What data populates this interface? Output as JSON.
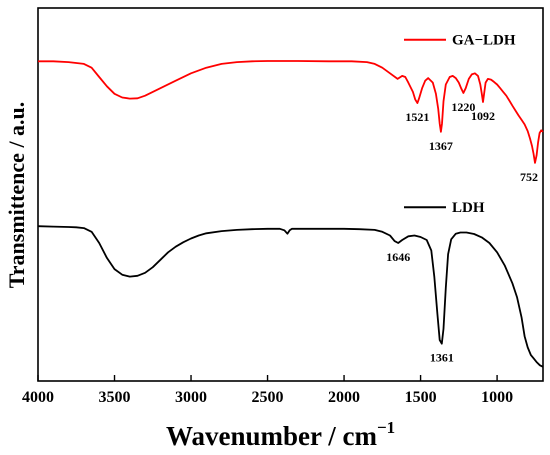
{
  "chart_data": {
    "type": "line",
    "xlabel": "Wavenumber / cm",
    "xlabel_superscript": "−1",
    "ylabel": "Transmittence / a.u.",
    "xlim": [
      4000,
      700
    ],
    "ylim": [
      0,
      1
    ],
    "x_reversed": true,
    "xticks": [
      4000,
      3500,
      3000,
      2500,
      2000,
      1500,
      1000
    ],
    "xtick_labels": [
      "4000",
      "3500",
      "3000",
      "2500",
      "2000",
      "1500",
      "1000"
    ],
    "grid": false,
    "legend_placement": "beside-each-curve",
    "series": [
      {
        "name": "GA−LDH",
        "color": "#ff0000",
        "points": [
          [
            4000,
            0.857
          ],
          [
            3900,
            0.857
          ],
          [
            3800,
            0.855
          ],
          [
            3700,
            0.85
          ],
          [
            3650,
            0.84
          ],
          [
            3600,
            0.815
          ],
          [
            3550,
            0.79
          ],
          [
            3500,
            0.77
          ],
          [
            3450,
            0.76
          ],
          [
            3400,
            0.757
          ],
          [
            3350,
            0.758
          ],
          [
            3300,
            0.765
          ],
          [
            3200,
            0.785
          ],
          [
            3100,
            0.805
          ],
          [
            3000,
            0.825
          ],
          [
            2900,
            0.84
          ],
          [
            2800,
            0.85
          ],
          [
            2700,
            0.855
          ],
          [
            2600,
            0.857
          ],
          [
            2500,
            0.858
          ],
          [
            2300,
            0.858
          ],
          [
            2100,
            0.857
          ],
          [
            1950,
            0.857
          ],
          [
            1850,
            0.855
          ],
          [
            1800,
            0.85
          ],
          [
            1750,
            0.84
          ],
          [
            1700,
            0.825
          ],
          [
            1650,
            0.81
          ],
          [
            1620,
            0.818
          ],
          [
            1600,
            0.815
          ],
          [
            1580,
            0.8
          ],
          [
            1550,
            0.775
          ],
          [
            1535,
            0.755
          ],
          [
            1521,
            0.745
          ],
          [
            1510,
            0.757
          ],
          [
            1490,
            0.785
          ],
          [
            1470,
            0.805
          ],
          [
            1450,
            0.812
          ],
          [
            1420,
            0.8
          ],
          [
            1400,
            0.77
          ],
          [
            1385,
            0.73
          ],
          [
            1375,
            0.69
          ],
          [
            1367,
            0.668
          ],
          [
            1360,
            0.69
          ],
          [
            1350,
            0.75
          ],
          [
            1335,
            0.795
          ],
          [
            1310,
            0.815
          ],
          [
            1290,
            0.818
          ],
          [
            1270,
            0.812
          ],
          [
            1250,
            0.8
          ],
          [
            1235,
            0.785
          ],
          [
            1220,
            0.772
          ],
          [
            1205,
            0.785
          ],
          [
            1185,
            0.81
          ],
          [
            1165,
            0.822
          ],
          [
            1145,
            0.825
          ],
          [
            1125,
            0.818
          ],
          [
            1110,
            0.795
          ],
          [
            1100,
            0.77
          ],
          [
            1092,
            0.748
          ],
          [
            1085,
            0.77
          ],
          [
            1075,
            0.8
          ],
          [
            1060,
            0.81
          ],
          [
            1040,
            0.808
          ],
          [
            1020,
            0.802
          ],
          [
            1000,
            0.795
          ],
          [
            980,
            0.785
          ],
          [
            960,
            0.775
          ],
          [
            940,
            0.765
          ],
          [
            920,
            0.752
          ],
          [
            900,
            0.738
          ],
          [
            880,
            0.725
          ],
          [
            860,
            0.712
          ],
          [
            840,
            0.7
          ],
          [
            820,
            0.688
          ],
          [
            800,
            0.67
          ],
          [
            785,
            0.65
          ],
          [
            772,
            0.63
          ],
          [
            762,
            0.61
          ],
          [
            752,
            0.585
          ],
          [
            742,
            0.605
          ],
          [
            732,
            0.64
          ],
          [
            722,
            0.665
          ],
          [
            712,
            0.672
          ],
          [
            700,
            0.668
          ]
        ]
      },
      {
        "name": "LDH",
        "color": "#000000",
        "points": [
          [
            4000,
            0.415
          ],
          [
            3900,
            0.414
          ],
          [
            3800,
            0.413
          ],
          [
            3750,
            0.412
          ],
          [
            3700,
            0.41
          ],
          [
            3650,
            0.4
          ],
          [
            3600,
            0.37
          ],
          [
            3550,
            0.33
          ],
          [
            3500,
            0.3
          ],
          [
            3450,
            0.285
          ],
          [
            3400,
            0.28
          ],
          [
            3350,
            0.282
          ],
          [
            3300,
            0.29
          ],
          [
            3250,
            0.305
          ],
          [
            3200,
            0.325
          ],
          [
            3150,
            0.345
          ],
          [
            3100,
            0.36
          ],
          [
            3050,
            0.372
          ],
          [
            3000,
            0.382
          ],
          [
            2950,
            0.39
          ],
          [
            2900,
            0.396
          ],
          [
            2800,
            0.402
          ],
          [
            2700,
            0.405
          ],
          [
            2600,
            0.407
          ],
          [
            2500,
            0.408
          ],
          [
            2420,
            0.408
          ],
          [
            2390,
            0.404
          ],
          [
            2370,
            0.395
          ],
          [
            2355,
            0.404
          ],
          [
            2340,
            0.408
          ],
          [
            2200,
            0.408
          ],
          [
            2000,
            0.408
          ],
          [
            1900,
            0.407
          ],
          [
            1800,
            0.405
          ],
          [
            1750,
            0.4
          ],
          [
            1700,
            0.39
          ],
          [
            1670,
            0.375
          ],
          [
            1646,
            0.37
          ],
          [
            1620,
            0.378
          ],
          [
            1580,
            0.388
          ],
          [
            1540,
            0.39
          ],
          [
            1500,
            0.386
          ],
          [
            1460,
            0.378
          ],
          [
            1430,
            0.35
          ],
          [
            1410,
            0.28
          ],
          [
            1390,
            0.18
          ],
          [
            1375,
            0.11
          ],
          [
            1361,
            0.1
          ],
          [
            1350,
            0.14
          ],
          [
            1335,
            0.25
          ],
          [
            1320,
            0.34
          ],
          [
            1300,
            0.38
          ],
          [
            1270,
            0.395
          ],
          [
            1240,
            0.398
          ],
          [
            1200,
            0.398
          ],
          [
            1150,
            0.394
          ],
          [
            1100,
            0.385
          ],
          [
            1050,
            0.37
          ],
          [
            1000,
            0.345
          ],
          [
            950,
            0.31
          ],
          [
            900,
            0.262
          ],
          [
            870,
            0.225
          ],
          [
            840,
            0.17
          ],
          [
            820,
            0.12
          ],
          [
            800,
            0.09
          ],
          [
            780,
            0.07
          ],
          [
            760,
            0.06
          ],
          [
            740,
            0.05
          ],
          [
            720,
            0.042
          ],
          [
            700,
            0.038
          ]
        ]
      }
    ],
    "annotations": [
      {
        "text": "1521",
        "x": 1521,
        "series": "GA−LDH"
      },
      {
        "text": "1367",
        "x": 1367,
        "series": "GA−LDH"
      },
      {
        "text": "1220",
        "x": 1220,
        "series": "GA−LDH"
      },
      {
        "text": "1092",
        "x": 1092,
        "series": "GA−LDH"
      },
      {
        "text": "752",
        "x": 752,
        "series": "GA−LDH"
      },
      {
        "text": "1646",
        "x": 1646,
        "series": "LDH"
      },
      {
        "text": "1361",
        "x": 1361,
        "series": "LDH"
      }
    ]
  }
}
